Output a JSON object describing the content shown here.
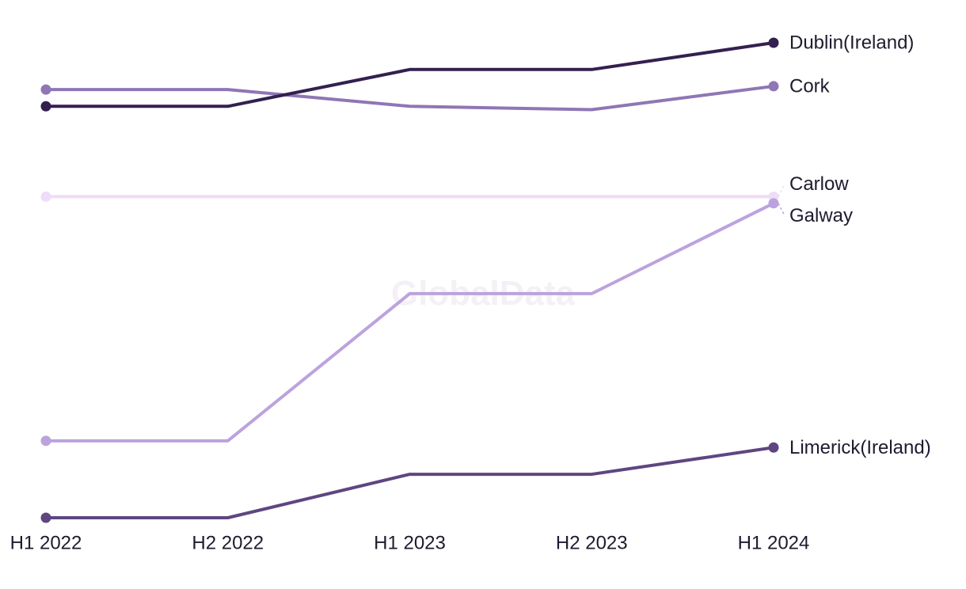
{
  "chart_data": {
    "type": "line",
    "title": "",
    "xlabel": "",
    "ylabel": "",
    "categories": [
      "H1 2022",
      "H2 2022",
      "H1 2023",
      "H2 2023",
      "H1 2024"
    ],
    "watermark": "GlobalData",
    "series": [
      {
        "name": "Dublin(Ireland)",
        "color": "#33204f",
        "values": [
          4.6,
          4.6,
          5.7,
          5.7,
          6.5
        ]
      },
      {
        "name": "Cork",
        "color": "#8f76b5",
        "values": [
          5.1,
          5.1,
          4.6,
          4.5,
          5.2
        ]
      },
      {
        "name": "Carlow",
        "color": "#efdcf6",
        "values": [
          1.9,
          1.9,
          1.9,
          1.9,
          1.9
        ]
      },
      {
        "name": "Galway",
        "color": "#bca2de",
        "values": [
          -5.4,
          -5.4,
          -1.0,
          -1.0,
          1.7
        ]
      },
      {
        "name": "Limerick(Ireland)",
        "color": "#5e4681",
        "values": [
          -7.7,
          -7.7,
          -6.4,
          -6.4,
          -5.6
        ]
      }
    ]
  }
}
